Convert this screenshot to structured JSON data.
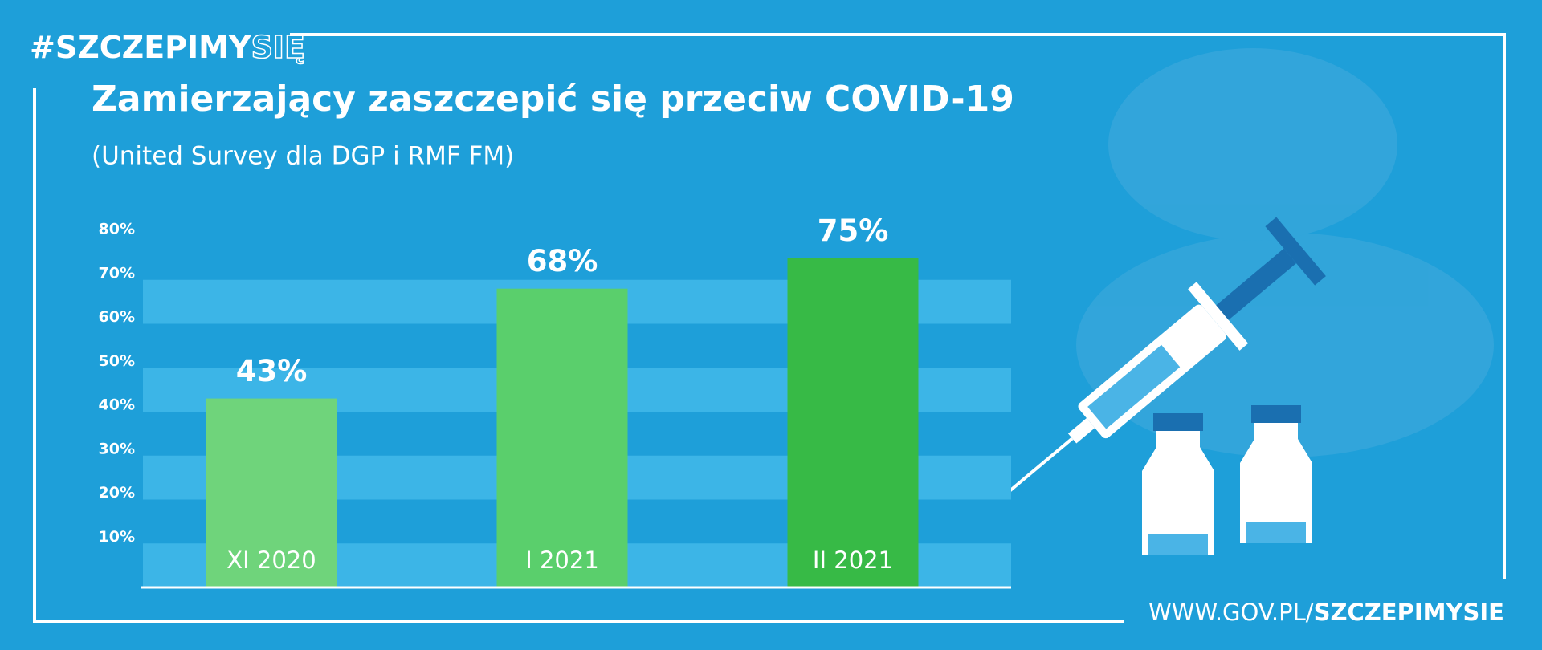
{
  "brand": {
    "hashtag": "#SZCZEPIMY",
    "hashtag_suffix": "SIĘ",
    "url": "WWW.GOV.PL/",
    "url_bold": "SZCZEPIMYSIE"
  },
  "chart_data": {
    "type": "bar",
    "title": "Zamierzający zaszczepić się przeciw COVID-19",
    "subtitle": "(United Survey dla DGP i RMF FM)",
    "categories": [
      "XI 2020",
      "I 2021",
      "II 2021"
    ],
    "values": [
      43,
      68,
      75
    ],
    "value_labels": [
      "43%",
      "68%",
      "75%"
    ],
    "colors": [
      "#6fd47b",
      "#5acf6c",
      "#37ba46"
    ],
    "ylim": [
      0,
      80
    ],
    "yticks": [
      {
        "value": 10,
        "label": "10%"
      },
      {
        "value": 20,
        "label": "20%"
      },
      {
        "value": 30,
        "label": "30%"
      },
      {
        "value": 40,
        "label": "40%"
      },
      {
        "value": 50,
        "label": "50%"
      },
      {
        "value": 60,
        "label": "60%"
      },
      {
        "value": 70,
        "label": "70%"
      },
      {
        "value": 80,
        "label": "80%"
      }
    ],
    "grid": "bands"
  }
}
